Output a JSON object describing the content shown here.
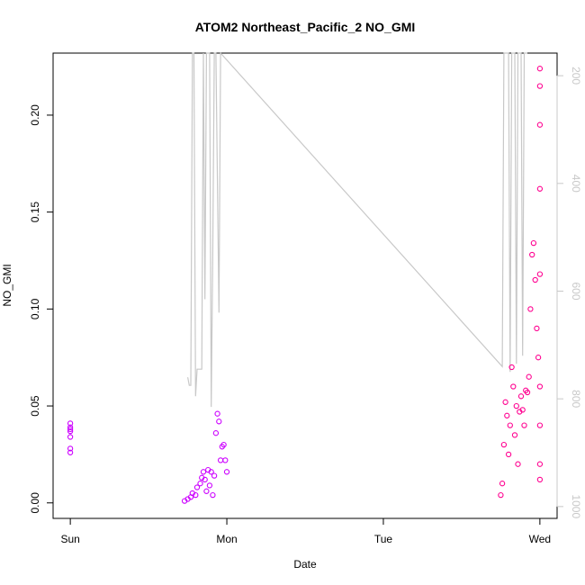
{
  "chart_data": {
    "type": "scatter",
    "title": "ATOM2 Northeast_Pacific_2 NO_GMI",
    "xlabel": "Date",
    "ylabel": "NO_GMI",
    "x_tick_labels": [
      "Sun",
      "Mon",
      "Tue",
      "Wed"
    ],
    "x_ticks_days": [
      0,
      1,
      2,
      3
    ],
    "xlim_days": [
      -0.11,
      3.11
    ],
    "ylim": [
      -0.008,
      0.232
    ],
    "y_ticks": [
      0.0,
      0.05,
      0.1,
      0.15,
      0.2
    ],
    "y_tick_labels": [
      "0.00",
      "0.05",
      "0.10",
      "0.15",
      "0.20"
    ],
    "y2_label": "",
    "y2_ticks": [
      200,
      400,
      600,
      800,
      1000
    ],
    "y2_tick_labels": [
      "200",
      "400",
      "600",
      "800",
      "1000"
    ],
    "y2lim": [
      1022,
      158
    ],
    "grid": false,
    "legend": "none",
    "colors": {
      "points_early": "#cc00ff",
      "points_late": "#ff0090",
      "pressure_line": "#c8c8c8",
      "axis": "#000000",
      "right_axis": "#c8c8c8"
    },
    "series": [
      {
        "role": "NO_GMI concentration (points)",
        "points": [
          [
            0.0,
            0.041
          ],
          [
            0.0,
            0.039
          ],
          [
            0.0,
            0.038
          ],
          [
            0.0,
            0.037
          ],
          [
            0.0,
            0.034
          ],
          [
            0.0,
            0.028
          ],
          [
            0.0,
            0.026
          ],
          [
            0.73,
            0.001
          ],
          [
            0.75,
            0.002
          ],
          [
            0.77,
            0.003
          ],
          [
            0.78,
            0.005
          ],
          [
            0.8,
            0.004
          ],
          [
            0.81,
            0.008
          ],
          [
            0.83,
            0.01
          ],
          [
            0.84,
            0.013
          ],
          [
            0.85,
            0.016
          ],
          [
            0.86,
            0.012
          ],
          [
            0.87,
            0.006
          ],
          [
            0.88,
            0.017
          ],
          [
            0.89,
            0.009
          ],
          [
            0.9,
            0.016
          ],
          [
            0.91,
            0.004
          ],
          [
            0.92,
            0.014
          ],
          [
            0.93,
            0.036
          ],
          [
            0.94,
            0.046
          ],
          [
            0.95,
            0.042
          ],
          [
            0.96,
            0.022
          ],
          [
            0.97,
            0.029
          ],
          [
            0.98,
            0.03
          ],
          [
            0.99,
            0.022
          ],
          [
            1.0,
            0.016
          ],
          [
            2.75,
            0.004
          ],
          [
            2.76,
            0.01
          ],
          [
            2.77,
            0.03
          ],
          [
            2.78,
            0.052
          ],
          [
            2.79,
            0.045
          ],
          [
            2.8,
            0.025
          ],
          [
            2.81,
            0.04
          ],
          [
            2.82,
            0.07
          ],
          [
            2.83,
            0.06
          ],
          [
            2.84,
            0.035
          ],
          [
            2.85,
            0.05
          ],
          [
            2.86,
            0.02
          ],
          [
            2.87,
            0.047
          ],
          [
            2.88,
            0.055
          ],
          [
            2.89,
            0.048
          ],
          [
            2.9,
            0.04
          ],
          [
            2.91,
            0.058
          ],
          [
            2.92,
            0.057
          ],
          [
            2.93,
            0.065
          ],
          [
            2.94,
            0.1
          ],
          [
            2.95,
            0.128
          ],
          [
            2.96,
            0.134
          ],
          [
            2.97,
            0.115
          ],
          [
            2.98,
            0.09
          ],
          [
            2.99,
            0.075
          ],
          [
            3.0,
            0.06
          ],
          [
            3.0,
            0.118
          ],
          [
            3.0,
            0.162
          ],
          [
            3.0,
            0.195
          ],
          [
            3.0,
            0.215
          ],
          [
            3.0,
            0.224
          ],
          [
            3.0,
            0.04
          ],
          [
            3.0,
            0.02
          ],
          [
            3.0,
            0.012
          ]
        ]
      },
      {
        "role": "pressure (grey line, right axis)",
        "points": [
          [
            0.75,
            760
          ],
          [
            0.76,
            775
          ],
          [
            0.77,
            775
          ],
          [
            0.78,
            158
          ],
          [
            0.79,
            158
          ],
          [
            0.8,
            795
          ],
          [
            0.81,
            745
          ],
          [
            0.84,
            745
          ],
          [
            0.85,
            158
          ],
          [
            0.86,
            615
          ],
          [
            0.87,
            158
          ],
          [
            0.89,
            158
          ],
          [
            0.9,
            815
          ],
          [
            0.91,
            530
          ],
          [
            0.92,
            158
          ],
          [
            0.93,
            158
          ],
          [
            0.95,
            640
          ],
          [
            0.96,
            158
          ],
          [
            2.76,
            740
          ],
          [
            2.77,
            158
          ],
          [
            2.8,
            158
          ],
          [
            2.81,
            750
          ],
          [
            2.82,
            158
          ],
          [
            2.84,
            158
          ],
          [
            2.85,
            735
          ],
          [
            2.86,
            158
          ],
          [
            2.88,
            158
          ],
          [
            2.89,
            720
          ],
          [
            2.9,
            158
          ],
          [
            2.92,
            158
          ]
        ]
      }
    ]
  }
}
